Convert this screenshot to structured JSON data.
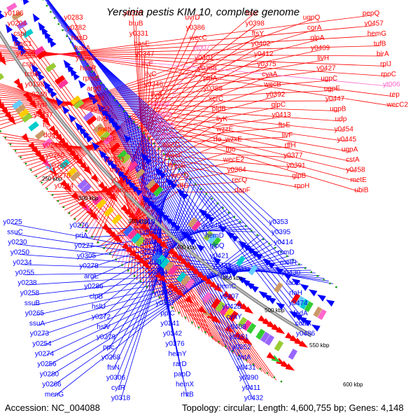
{
  "title": "Yersinia pestis KIM 10, complete genome",
  "accession": "Accession: NC_004088",
  "topology": "Topology: circular; Length: 4,600,755 bp; Genes: 4,148",
  "colors": {
    "forward": "#ff0000",
    "reverse": "#0000ff",
    "pink": "#ff66cc",
    "backbone": "#8c8c8c",
    "cog_green": "#119911"
  },
  "ticks": [
    "250 kbp",
    "300 kbp",
    "350 kbp",
    "400 kbp",
    "450 kbp",
    "500 kbp",
    "550 kbp",
    "600 kbp"
  ],
  "upper_labels": [
    "y0186",
    "y0204",
    "cspI",
    "tcaC1",
    "y0200",
    "cspI",
    "tcbA",
    "y0198",
    "y0240",
    "slyB",
    "y0237",
    "fis",
    "ddg",
    "y0249",
    "y0260",
    "y0253",
    "y0270",
    "y0284",
    "y0283",
    "y0282",
    "hasD",
    "hasA",
    "y0288",
    "hasR",
    "rpmE",
    "argB",
    "murI",
    "y0322",
    "ilvD",
    "metL",
    "metF",
    "argC",
    "y0333",
    "oxyR",
    "y0307",
    "argH",
    "y0328",
    "btuB",
    "y0331",
    "hasE",
    "y0347",
    "ilvE",
    "ilvC",
    "y0346",
    "ilvA",
    "y0006",
    "y0003",
    "yt009",
    "yt008",
    "wecG",
    "wecF",
    "wecE",
    "wecD",
    "rffG",
    "uvrD",
    "y0386",
    "wecC",
    "yt007",
    "y0401",
    "y0388",
    "pldA",
    "y0388",
    "xerC",
    "pldB",
    "livK",
    "wzzE",
    "rfe_wzxE",
    "tho",
    "wecE2",
    "y0384",
    "recQ",
    "dapF",
    "ftsX",
    "y0398",
    "ftsY",
    "y0402",
    "y0412",
    "y0375",
    "cyaA",
    "wecB",
    "y0392",
    "glpC",
    "y0413",
    "ftsE",
    "livF",
    "rffH",
    "y0377",
    "y0391",
    "glpB",
    "rpoH",
    "ugpQ",
    "corA",
    "glpA",
    "y0409",
    "livH",
    "y0427",
    "ugpC",
    "ugpE",
    "y0447",
    "ugpB",
    "udp",
    "y0454",
    "y0445",
    "ugpA",
    "cstA",
    "y0458",
    "metE",
    "ubiB",
    "pepQ",
    "y0457",
    "hemG",
    "tufB",
    "birA",
    "rplJ",
    "rpoC",
    "yt006",
    "rep",
    "wecC2"
  ],
  "lower_labels": [
    "y0225",
    "ssuC",
    "y0230",
    "y0250",
    "y0234",
    "y0255",
    "y0238",
    "y0258",
    "ssuB",
    "y0265",
    "ssuA",
    "y0273",
    "y0254",
    "y0274",
    "y0256",
    "y0280",
    "y0266",
    "menG",
    "y0276",
    "priA",
    "y0277",
    "y0305",
    "y0278",
    "argE",
    "y0286",
    "clpB",
    "hslU",
    "y0272",
    "hslV",
    "y0279",
    "ppc",
    "y0268",
    "ftsN",
    "y0306",
    "cytR",
    "y0318",
    "y0319",
    "udhA",
    "trmA",
    "y0332",
    "rhlB",
    "y0334",
    "ilvY",
    "y0340",
    "y0357",
    "ppiC",
    "y0341",
    "y0342",
    "y0376",
    "hemY",
    "rarD",
    "papD",
    "hemX",
    "rhtB",
    "y0349",
    "hemD",
    "glpQ",
    "y0421",
    "y0443",
    "fimD",
    "hemC",
    "y0407",
    "y0428",
    "cyaY",
    "y0408",
    "y0351",
    "y0352",
    "zntA",
    "y0431",
    "y0390",
    "y0411",
    "y0432",
    "y0353",
    "y0395",
    "y0414",
    "rsmD",
    "metR",
    "y0430",
    "fadB",
    "rfaH",
    "y0474",
    "fadA",
    "coaA",
    "y0486"
  ]
}
